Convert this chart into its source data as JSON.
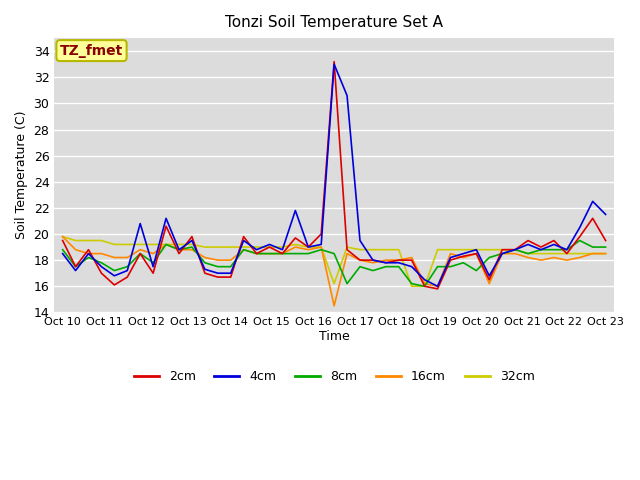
{
  "title": "Tonzi Soil Temperature Set A",
  "xlabel": "Time",
  "ylabel": "Soil Temperature (C)",
  "ylim": [
    14,
    35
  ],
  "yticks": [
    14,
    16,
    18,
    20,
    22,
    24,
    26,
    28,
    30,
    32,
    34
  ],
  "bg_color": "#dcdcdc",
  "annotation_text": "TZ_fmet",
  "annotation_color": "#8b0000",
  "annotation_bg": "#ffff99",
  "annotation_border": "#b8b800",
  "series_colors": {
    "2cm": "#dd0000",
    "4cm": "#0000dd",
    "8cm": "#00aa00",
    "16cm": "#ff8800",
    "32cm": "#cccc00"
  },
  "xtick_labels": [
    "Oct 10",
    "Oct 11",
    "Oct 12",
    "Oct 13",
    "Oct 14",
    "Oct 15",
    "Oct 16",
    "Oct 17",
    "Oct 18",
    "Oct 19",
    "Oct 20",
    "Oct 21",
    "Oct 22",
    "Oct 23"
  ],
  "y_2cm": [
    19.5,
    17.5,
    18.8,
    17.0,
    16.1,
    16.7,
    18.5,
    17.0,
    20.6,
    18.5,
    19.8,
    17.0,
    16.7,
    16.7,
    19.8,
    18.5,
    19.0,
    18.5,
    19.7,
    19.0,
    20.0,
    33.2,
    18.8,
    18.0,
    18.0,
    17.8,
    18.0,
    18.0,
    16.0,
    15.8,
    18.0,
    18.3,
    18.5,
    16.5,
    18.8,
    18.8,
    19.5,
    19.0,
    19.5,
    18.5,
    19.8,
    21.2,
    19.5
  ],
  "y_4cm": [
    18.5,
    17.2,
    18.5,
    17.5,
    16.8,
    17.2,
    20.8,
    17.5,
    21.2,
    18.8,
    19.5,
    17.3,
    17.0,
    17.0,
    19.5,
    18.8,
    19.2,
    18.8,
    21.8,
    19.0,
    19.2,
    33.0,
    30.6,
    19.5,
    18.0,
    17.8,
    17.8,
    17.5,
    16.5,
    16.0,
    18.2,
    18.5,
    18.8,
    16.8,
    18.5,
    18.8,
    19.2,
    18.8,
    19.2,
    18.8,
    20.5,
    22.5,
    21.5
  ],
  "y_8cm": [
    18.8,
    17.5,
    18.2,
    17.8,
    17.2,
    17.5,
    18.5,
    17.8,
    19.2,
    18.8,
    19.0,
    17.8,
    17.5,
    17.5,
    18.8,
    18.5,
    18.5,
    18.5,
    18.5,
    18.5,
    18.8,
    18.5,
    16.2,
    17.5,
    17.2,
    17.5,
    17.5,
    16.2,
    16.0,
    17.5,
    17.5,
    17.8,
    17.2,
    18.2,
    18.5,
    18.8,
    18.5,
    18.8,
    18.8,
    18.8,
    19.5,
    19.0,
    19.0
  ],
  "y_16cm": [
    19.8,
    18.8,
    18.5,
    18.5,
    18.2,
    18.2,
    18.8,
    18.5,
    19.2,
    18.8,
    18.8,
    18.2,
    18.0,
    18.0,
    18.8,
    18.5,
    18.5,
    18.5,
    19.0,
    18.8,
    19.0,
    14.5,
    18.5,
    18.0,
    17.8,
    18.0,
    18.0,
    18.2,
    16.2,
    16.0,
    18.5,
    18.2,
    18.5,
    16.2,
    18.5,
    18.5,
    18.2,
    18.0,
    18.2,
    18.0,
    18.2,
    18.5,
    18.5
  ],
  "y_32cm": [
    19.8,
    19.5,
    19.5,
    19.5,
    19.2,
    19.2,
    19.2,
    19.2,
    19.2,
    19.2,
    19.2,
    19.0,
    19.0,
    19.0,
    19.0,
    19.0,
    19.0,
    19.0,
    19.2,
    19.0,
    19.0,
    16.2,
    19.0,
    18.8,
    18.8,
    18.8,
    18.8,
    16.0,
    16.0,
    18.8,
    18.8,
    18.8,
    18.8,
    18.8,
    18.8,
    18.8,
    18.5,
    18.5,
    18.5,
    18.5,
    18.5,
    18.5,
    18.5
  ]
}
